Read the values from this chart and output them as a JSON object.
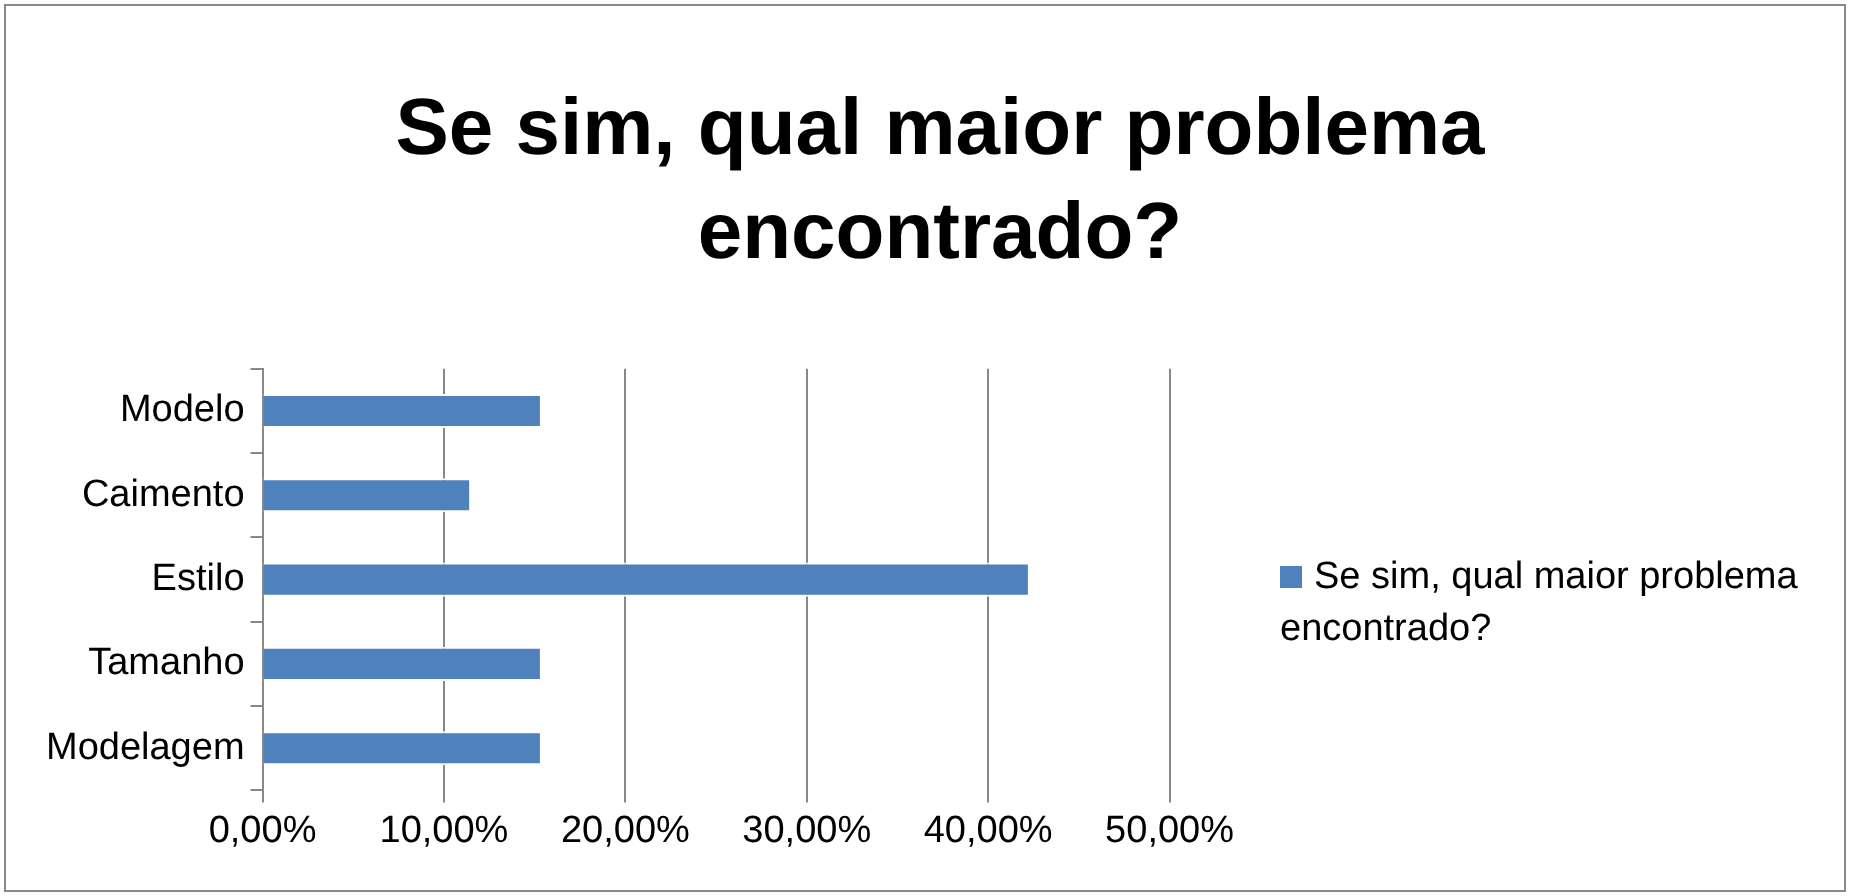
{
  "chart_data": {
    "type": "bar",
    "orientation": "horizontal",
    "title": "Se sim, qual maior problema encontrado?",
    "categories": [
      "Modelo",
      "Caimento",
      "Estilo",
      "Tamanho",
      "Modelagem"
    ],
    "series": [
      {
        "name": "Se sim, qual maior problema encontrado?",
        "color": "#4f81bd",
        "values": [
          15.4,
          11.5,
          42.3,
          15.4,
          15.4
        ]
      }
    ],
    "xlim": [
      0,
      50
    ],
    "xticks": [
      {
        "value": 0,
        "label": "0,00%"
      },
      {
        "value": 10,
        "label": "10,00%"
      },
      {
        "value": 20,
        "label": "20,00%"
      },
      {
        "value": 30,
        "label": "30,00%"
      },
      {
        "value": 40,
        "label": "40,00%"
      },
      {
        "value": 50,
        "label": "50,00%"
      }
    ],
    "grid": "x",
    "legend": "right"
  }
}
